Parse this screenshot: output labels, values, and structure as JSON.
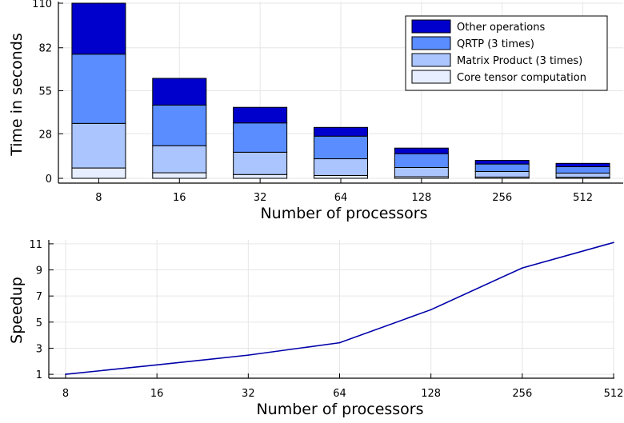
{
  "chart_data": [
    {
      "type": "bar",
      "stacked": true,
      "xlabel": "Number of processors",
      "ylabel": "Time in seconds",
      "categories": [
        "8",
        "16",
        "32",
        "64",
        "128",
        "256",
        "512"
      ],
      "yticks": [
        "0",
        "28",
        "55",
        "82",
        "110"
      ],
      "ytick_values": [
        0,
        28,
        55,
        82,
        110
      ],
      "ylim": [
        -3,
        111
      ],
      "grid": true,
      "legend_position": "top-right",
      "series": [
        {
          "name": "Core tensor computation",
          "color": "#e6eeff",
          "values": [
            6.5,
            3.5,
            2.4,
            1.8,
            1.0,
            0.8,
            0.7
          ]
        },
        {
          "name": "Matrix Product (3 times)",
          "color": "#abc6ff",
          "values": [
            28.0,
            17.0,
            14.0,
            10.5,
            5.8,
            3.5,
            2.6
          ]
        },
        {
          "name": "QRTP (3 times)",
          "color": "#5a8dff",
          "values": [
            43.5,
            25.5,
            18.4,
            14.2,
            8.7,
            4.7,
            4.0
          ]
        },
        {
          "name": "Other operations",
          "color": "#0000cc",
          "values": [
            32.0,
            16.8,
            9.8,
            5.5,
            3.5,
            2.3,
            2.1
          ]
        }
      ]
    },
    {
      "type": "line",
      "xlabel": "Number of processors",
      "ylabel": "Speedup",
      "x": [
        8,
        16,
        32,
        64,
        128,
        256,
        512
      ],
      "xticks": [
        "8",
        "16",
        "32",
        "64",
        "128",
        "256",
        "512"
      ],
      "yticks": [
        "1",
        "3",
        "5",
        "7",
        "9",
        "11"
      ],
      "ytick_values": [
        1,
        3,
        5,
        7,
        9,
        11
      ],
      "ylim": [
        0.7,
        11.3
      ],
      "x_scale": "log2",
      "grid": true,
      "series": [
        {
          "color": "#0000aa",
          "values": [
            1.0,
            1.72,
            2.47,
            3.42,
            5.95,
            9.15,
            11.1
          ]
        }
      ]
    }
  ]
}
